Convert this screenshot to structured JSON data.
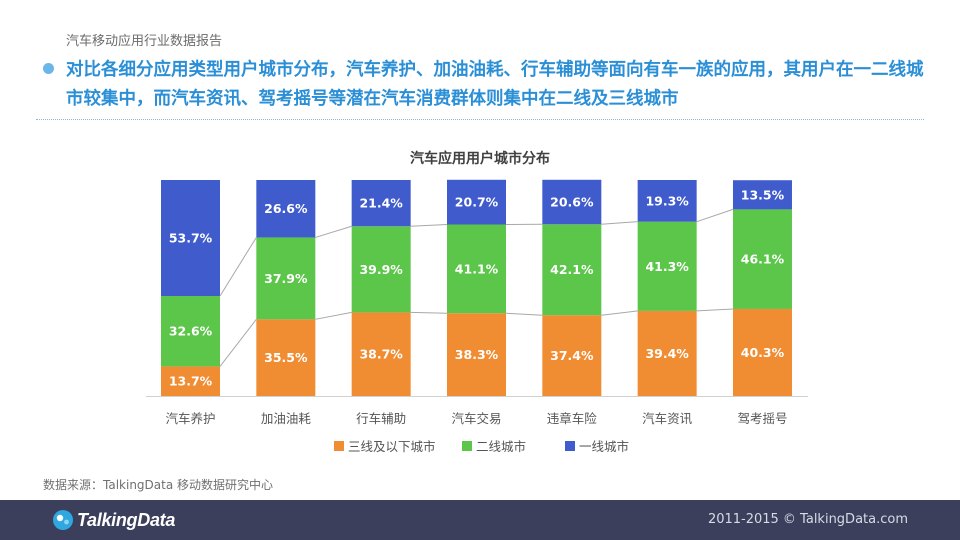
{
  "header": {
    "report_title": "汽车移动应用行业数据报告",
    "headline": "对比各细分应用类型用户城市分布，汽车养护、加油油耗、行车辅助等面向有车一族的应用，其用户在一二线城市较集中，而汽车资讯、驾考摇号等潜在汽车消费群体则集中在二线及三线城市"
  },
  "chart_data": {
    "type": "bar",
    "stacked": true,
    "title": "汽车应用用户城市分布",
    "categories": [
      "汽车养护",
      "加油油耗",
      "行车辅助",
      "汽车交易",
      "违章车险",
      "汽车资讯",
      "驾考摇号"
    ],
    "series": [
      {
        "name": "三线及以下城市",
        "color": "#f08c32",
        "values": [
          13.7,
          35.5,
          38.7,
          38.3,
          37.4,
          39.4,
          40.3
        ]
      },
      {
        "name": "二线城市",
        "color": "#5cc64a",
        "values": [
          32.6,
          37.9,
          39.9,
          41.1,
          42.1,
          41.3,
          46.1
        ]
      },
      {
        "name": "一线城市",
        "color": "#3f5bcc",
        "values": [
          53.7,
          26.6,
          21.4,
          20.7,
          20.6,
          19.3,
          13.5
        ]
      }
    ],
    "value_suffix": "%",
    "ylim": [
      0,
      100
    ],
    "legend_position": "bottom"
  },
  "footer": {
    "source": "数据来源：TalkingData 移动数据研究中心",
    "logo_text": "TalkingData",
    "copyright": "2011-2015 © TalkingData.com"
  }
}
